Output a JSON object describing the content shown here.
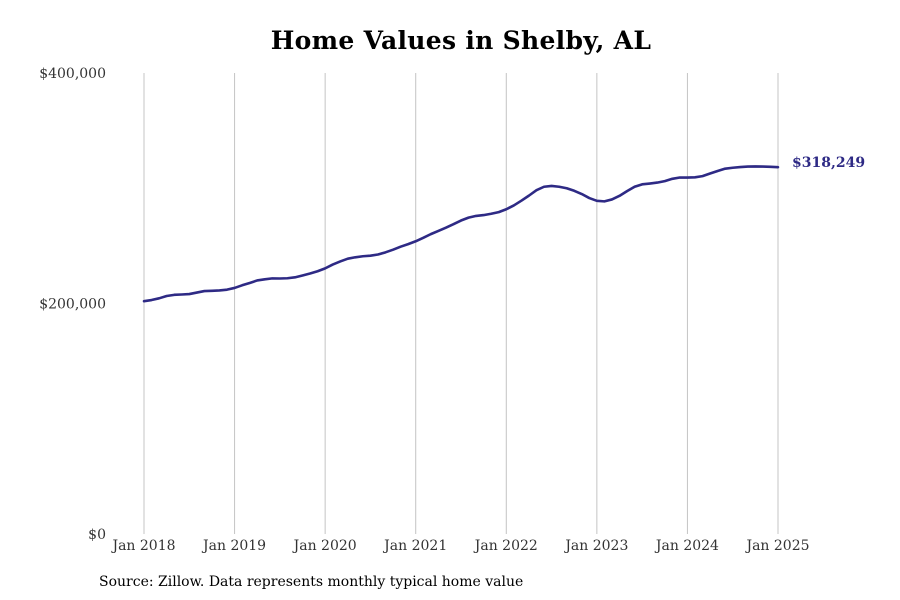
{
  "chart_data": {
    "type": "line",
    "title": "Home Values in Shelby, AL",
    "xlabel": "",
    "ylabel": "",
    "ylim": [
      0,
      400000
    ],
    "xlim": [
      "2018-01",
      "2025-01"
    ],
    "y_ticks": [
      {
        "value": 0,
        "label": "$0"
      },
      {
        "value": 200000,
        "label": "$200,000"
      },
      {
        "value": 400000,
        "label": "$400,000"
      }
    ],
    "x_ticks": [
      {
        "value": "2018-01",
        "label": "Jan 2018"
      },
      {
        "value": "2019-01",
        "label": "Jan 2019"
      },
      {
        "value": "2020-01",
        "label": "Jan 2020"
      },
      {
        "value": "2021-01",
        "label": "Jan 2021"
      },
      {
        "value": "2022-01",
        "label": "Jan 2022"
      },
      {
        "value": "2023-01",
        "label": "Jan 2023"
      },
      {
        "value": "2024-01",
        "label": "Jan 2024"
      },
      {
        "value": "2025-01",
        "label": "Jan 2025"
      }
    ],
    "grid": {
      "vertical": true,
      "horizontal": false
    },
    "line_color": "#2e2a85",
    "end_label": "$318,249",
    "series": [
      {
        "x": [
          "2018-01",
          "2018-02",
          "2018-03",
          "2018-04",
          "2018-05",
          "2018-06",
          "2018-07",
          "2018-08",
          "2018-09",
          "2018-10",
          "2018-11",
          "2018-12",
          "2019-01",
          "2019-02",
          "2019-03",
          "2019-04",
          "2019-05",
          "2019-06",
          "2019-07",
          "2019-08",
          "2019-09",
          "2019-10",
          "2019-11",
          "2019-12",
          "2020-01",
          "2020-02",
          "2020-03",
          "2020-04",
          "2020-05",
          "2020-06",
          "2020-07",
          "2020-08",
          "2020-09",
          "2020-10",
          "2020-11",
          "2020-12",
          "2021-01",
          "2021-02",
          "2021-03",
          "2021-04",
          "2021-05",
          "2021-06",
          "2021-07",
          "2021-08",
          "2021-09",
          "2021-10",
          "2021-11",
          "2021-12",
          "2022-01",
          "2022-02",
          "2022-03",
          "2022-04",
          "2022-05",
          "2022-06",
          "2022-07",
          "2022-08",
          "2022-09",
          "2022-10",
          "2022-11",
          "2022-12",
          "2023-01",
          "2023-02",
          "2023-03",
          "2023-04",
          "2023-05",
          "2023-06",
          "2023-07",
          "2023-08",
          "2023-09",
          "2023-10",
          "2023-11",
          "2023-12",
          "2024-01",
          "2024-02",
          "2024-03",
          "2024-04",
          "2024-05",
          "2024-06",
          "2024-07",
          "2024-08",
          "2024-09",
          "2024-10",
          "2024-11",
          "2024-12",
          "2025-01"
        ],
        "values": [
          202000,
          203000,
          204500,
          206500,
          207500,
          207800,
          208200,
          209500,
          210800,
          211000,
          211300,
          212000,
          213500,
          215800,
          217800,
          220000,
          221000,
          221800,
          221700,
          221900,
          222700,
          224300,
          226000,
          228000,
          230500,
          233800,
          236500,
          238900,
          240100,
          241000,
          241500,
          242500,
          244400,
          246700,
          249300,
          251500,
          254000,
          257000,
          260200,
          263000,
          265800,
          268800,
          272000,
          274500,
          276000,
          276700,
          277900,
          279300,
          281800,
          285100,
          289200,
          293600,
          298300,
          301300,
          302000,
          301300,
          300000,
          297800,
          295000,
          291500,
          289100,
          288600,
          290300,
          293400,
          297500,
          301300,
          303400,
          304100,
          304900,
          306200,
          308200,
          309300,
          309300,
          309500,
          310500,
          312800,
          315000,
          317000,
          317800,
          318400,
          318800,
          318900,
          318800,
          318600,
          318249
        ]
      }
    ]
  },
  "source_note": "Source: Zillow. Data represents monthly typical home value"
}
